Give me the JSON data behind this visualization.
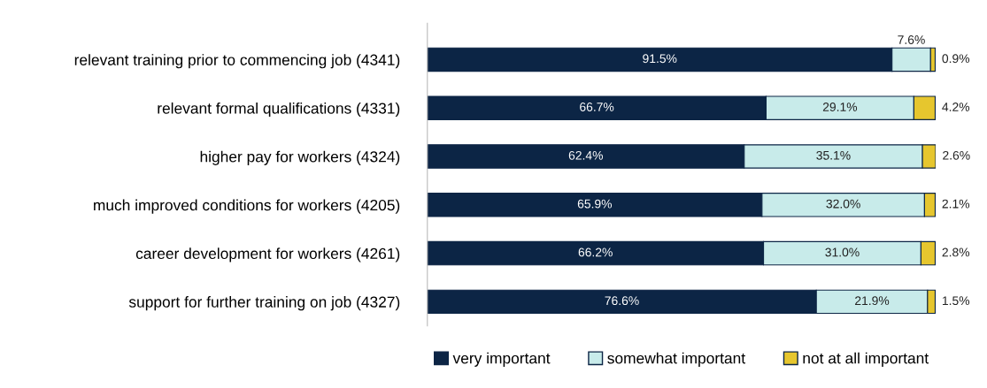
{
  "chart_data": {
    "type": "bar",
    "orientation": "horizontal",
    "stacked": true,
    "legend": "bottom",
    "grid": false,
    "categories": [
      "relevant training prior to commencing job (4341)",
      "relevant formal qualifications (4331)",
      "higher pay for workers (4324)",
      "much improved conditions for workers (4205)",
      "career development for workers (4261)",
      "support for further training on job (4327)"
    ],
    "series": [
      {
        "name": "very important",
        "color": "#0c2545",
        "values": [
          91.5,
          66.7,
          62.4,
          65.9,
          66.2,
          76.6
        ],
        "value_labels": [
          "91.5%",
          "66.7%",
          "62.4%",
          "65.9%",
          "66.2%",
          "76.6%"
        ]
      },
      {
        "name": "somewhat important",
        "color": "#c8ebea",
        "values": [
          7.6,
          29.1,
          35.1,
          32.0,
          31.0,
          21.9
        ],
        "value_labels": [
          "7.6%",
          "29.1%",
          "35.1%",
          "32.0%",
          "31.0%",
          "21.9%"
        ]
      },
      {
        "name": "not at all important",
        "color": "#e6c62e",
        "values": [
          0.9,
          4.2,
          2.6,
          2.1,
          2.8,
          1.5
        ],
        "value_labels": [
          "0.9%",
          "4.2%",
          "2.6%",
          "2.1%",
          "2.8%",
          "1.5%"
        ]
      }
    ]
  }
}
